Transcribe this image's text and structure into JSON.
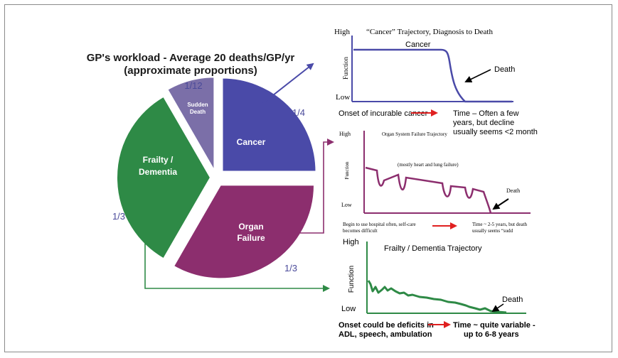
{
  "pie": {
    "title_line1": "GP's workload - Average 20 deaths/GP/yr",
    "title_line2": "(approximate proportions)",
    "slices": [
      {
        "name": "Cancer",
        "fraction_label": "1/4",
        "value": 0.25,
        "color": "#4a4aa8"
      },
      {
        "name_line1": "Organ",
        "name_line2": "Failure",
        "fraction_label": "1/3",
        "value": 0.3333,
        "color": "#8c2e6e"
      },
      {
        "name_line1": "Frailty /",
        "name_line2": "Dementia",
        "fraction_label": "1/3",
        "value": 0.3333,
        "color": "#2e8a46"
      },
      {
        "name_line1": "Sudden",
        "name_line2": "Death",
        "fraction_label": "1/12",
        "value": 0.0833,
        "color": "#7b6fa8"
      }
    ]
  },
  "cancer_panel": {
    "title": "“Cancer” Trajectory, Diagnosis to Death",
    "high": "High",
    "low": "Low",
    "ylabel": "Function",
    "curve_label": "Cancer",
    "death_label": "Death",
    "onset": "Onset of incurable cancer",
    "time_line1": "Time – Often a few",
    "time_line2": "years, but decline",
    "time_line3": "usually seems <2 month",
    "color": "#4a4aa8"
  },
  "organ_panel": {
    "title": "Organ System Failure Trajectory",
    "high": "High",
    "low": "Low",
    "ylabel": "Function",
    "note": "(mostly heart and lung failure)",
    "death_label": "Death",
    "onset_line1": "Begin to use hospital often, self-care",
    "onset_line2": "becomes difficult",
    "time_line1": "Time ~ 2-5 years, but death",
    "time_line2": "usually seems “sudd",
    "color": "#8c2e6e"
  },
  "frailty_panel": {
    "title": "Frailty / Dementia Trajectory",
    "high": "High",
    "low": "Low",
    "ylabel": "Function",
    "death_label": "Death",
    "onset_line1": "Onset could be deficits in",
    "onset_line2": "ADL, speech, ambulation",
    "time_line1": "Time ~ quite variable -",
    "time_line2": "up to 6-8 years",
    "color": "#2e8a46"
  },
  "arrow_color": "#e02020"
}
